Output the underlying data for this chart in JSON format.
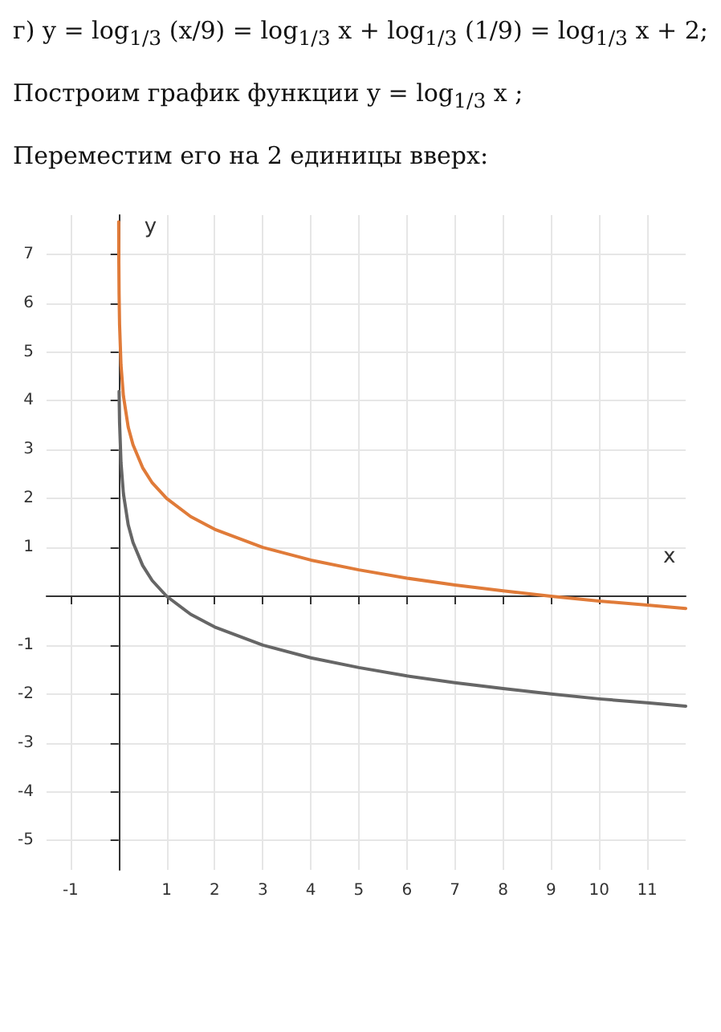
{
  "chart_data": {
    "type": "line",
    "annotations": [
      "г) y = log$_{1/3}$ (x/9) = log$_{1/3}$ x + log$_{1/3}$ (1/9) = log$_{1/3}$ x + 2;",
      "Построим график функции y = log$_{1/3}$ x ;",
      "Переместим его на 2 единицы вверх:"
    ],
    "xlabel": "x",
    "ylabel": "y",
    "xlim": [
      -1.5,
      11.8
    ],
    "ylim": [
      -5.6,
      7.8
    ],
    "xticks": [
      -1,
      1,
      2,
      3,
      4,
      5,
      6,
      7,
      8,
      9,
      10,
      11
    ],
    "yticks": [
      -5,
      -4,
      -3,
      -2,
      -1,
      1,
      2,
      3,
      4,
      5,
      6,
      7
    ],
    "grid": true,
    "marker": "none",
    "series": [
      {
        "color": "#666666",
        "x": [
          0.01,
          0.02,
          0.05,
          0.1,
          0.2,
          0.3,
          0.5,
          0.7,
          1,
          1.5,
          2,
          3,
          4,
          5,
          6,
          7,
          8,
          9,
          10,
          11,
          11.8
        ],
        "values": [
          4.19,
          3.56,
          2.73,
          2.1,
          1.46,
          1.1,
          0.63,
          0.32,
          0,
          -0.37,
          -0.63,
          -1,
          -1.26,
          -1.46,
          -1.63,
          -1.77,
          -1.89,
          -2,
          -2.1,
          -2.18,
          -2.25
        ]
      },
      {
        "color": "#e07b39",
        "x": [
          0.002,
          0.005,
          0.01,
          0.02,
          0.05,
          0.1,
          0.2,
          0.3,
          0.5,
          0.7,
          1,
          1.5,
          2,
          3,
          4,
          5,
          6,
          7,
          8,
          9,
          10,
          11,
          11.8
        ],
        "values": [
          7.66,
          6.82,
          6.19,
          5.56,
          4.73,
          4.1,
          3.46,
          3.1,
          2.63,
          2.32,
          2,
          1.63,
          1.37,
          1,
          0.74,
          0.54,
          0.37,
          0.23,
          0.11,
          0,
          -0.1,
          -0.18,
          -0.25
        ]
      }
    ]
  }
}
